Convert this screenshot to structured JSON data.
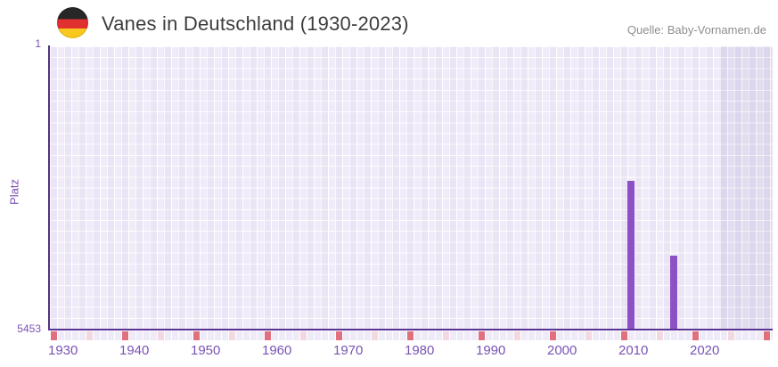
{
  "header": {
    "flag_icon": "german-flag-roundel",
    "title": "Vanes in Deutschland (1930-2023)",
    "source": "Quelle: Baby-Vornamen.de"
  },
  "chart_data": {
    "type": "bar",
    "title": "Vanes in Deutschland (1930-2023)",
    "xlabel": "",
    "ylabel": "Platz",
    "y_axis": {
      "top_tick_label": "1",
      "bottom_tick_label": "5453",
      "min": 1,
      "max": 5453,
      "inverted": true
    },
    "x_axis": {
      "data_start_year": 1930,
      "data_end_year": 2023,
      "tick_labels": [
        "1930",
        "1940",
        "1950",
        "1960",
        "1970",
        "1980",
        "1990",
        "2000",
        "2010",
        "2020"
      ]
    },
    "series": [
      {
        "name": "Platz von Vanes",
        "points": [
          {
            "year": 2011,
            "rank": 2600
          },
          {
            "year": 2017,
            "rank": 4040
          }
        ]
      }
    ],
    "decade_marker_years": [
      1930,
      1940,
      1950,
      1960,
      1970,
      1980,
      1990,
      2000,
      2010,
      2020,
      2030
    ],
    "middecade_marker_years": [
      1935,
      1945,
      1955,
      1965,
      1975,
      1985,
      1995,
      2005,
      2015,
      2025
    ],
    "no_data_region_start_year": 2024,
    "legend": "none",
    "grid": true,
    "colors": {
      "bar": "#8b51c5",
      "axis_line": "#5b3395",
      "y_axis_line": "#53317f",
      "decade_marker": "#e0707e",
      "middecade_marker": "#f2d8e1",
      "tick_label": "#7a52b5",
      "grid_cell": "#efebf8",
      "no_data_cell": "#e2ddef"
    }
  }
}
